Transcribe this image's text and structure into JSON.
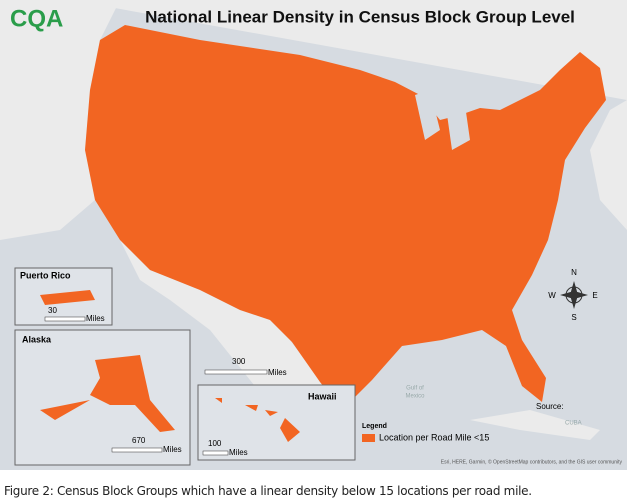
{
  "header": {
    "logo": "CQA",
    "title": "National Linear Density in Census Block Group Level"
  },
  "insets": {
    "puerto_rico": {
      "label": "Puerto Rico",
      "scale": "30",
      "unit": "Miles"
    },
    "alaska": {
      "label": "Alaska",
      "scale": "670",
      "unit": "Miles"
    },
    "hawaii": {
      "label": "Hawaii",
      "scale": "100",
      "unit": "Miles"
    }
  },
  "main_scale": {
    "scale": "300",
    "unit": "Miles"
  },
  "compass": {
    "n": "N",
    "s": "S",
    "e": "E",
    "w": "W"
  },
  "places": {
    "gulf_line1": "Gulf of",
    "gulf_line2": "Mexico",
    "cuba": "CUBA"
  },
  "legend": {
    "title": "Legend",
    "item": "Location per Road Mile <15"
  },
  "source": "Source:",
  "attribution": "Esri, HERE, Garmin, © OpenStreetMap contributors, and the GIS user community",
  "caption": "Figure 2:  Census Block Groups which have a linear density below 15 locations per road mile."
}
